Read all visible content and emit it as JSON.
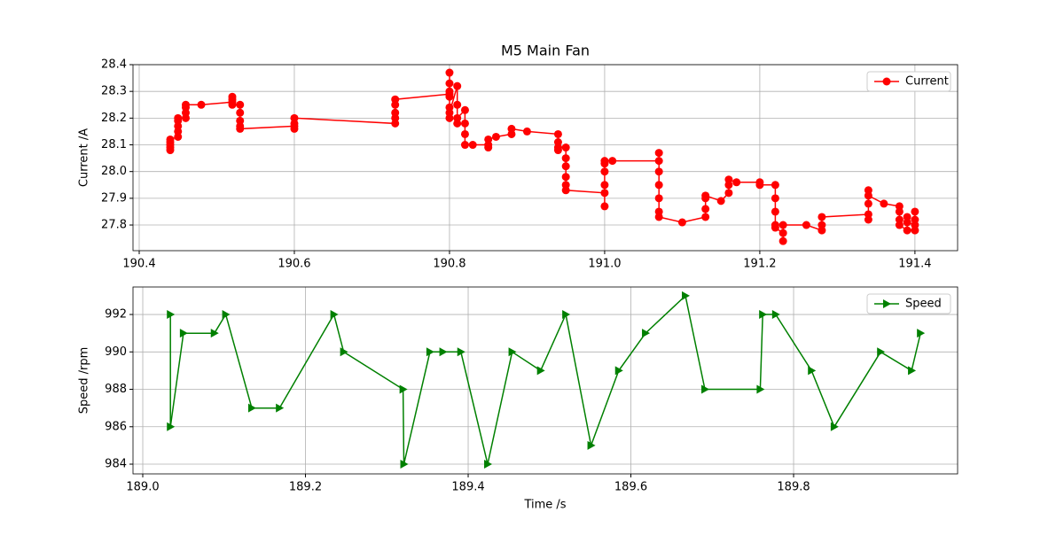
{
  "chart_data": [
    {
      "type": "line",
      "title": "M5 Main Fan",
      "y_label": "Current /A",
      "xlim": [
        190.392,
        191.455
      ],
      "ylim": [
        27.704,
        28.4
      ],
      "xticks": [
        190.4,
        190.6,
        190.8,
        {
          "value": 191.0,
          "label": "191.0"
        },
        191.2,
        191.4
      ],
      "yticks": [
        27.8,
        27.9,
        {
          "value": 28.0,
          "label": "28.0"
        },
        28.1,
        28.2,
        28.3,
        28.4
      ],
      "grid": true,
      "legend": "upper right",
      "series": [
        {
          "name": "Current",
          "color": "#ff0000",
          "marker": "o",
          "x": [
            190.44,
            190.44,
            190.44,
            190.44,
            190.44,
            190.45,
            190.45,
            190.45,
            190.45,
            190.45,
            190.46,
            190.46,
            190.46,
            190.46,
            190.48,
            190.52,
            190.52,
            190.52,
            190.52,
            190.53,
            190.53,
            190.53,
            190.53,
            190.53,
            190.6,
            190.6,
            190.6,
            190.6,
            190.73,
            190.73,
            190.73,
            190.73,
            190.73,
            190.8,
            190.8,
            190.8,
            190.8,
            190.8,
            190.8,
            190.8,
            190.8,
            190.81,
            190.81,
            190.81,
            190.81,
            190.82,
            190.82,
            190.82,
            190.82,
            190.83,
            190.85,
            190.85,
            190.85,
            190.86,
            190.88,
            190.88,
            190.9,
            190.94,
            190.94,
            190.94,
            190.94,
            190.95,
            190.95,
            190.95,
            190.95,
            190.95,
            190.95,
            191.0,
            191.0,
            191.0,
            191.0,
            191.0,
            191.0,
            191.01,
            191.07,
            191.07,
            191.07,
            191.07,
            191.07,
            191.07,
            191.07,
            191.1,
            191.13,
            191.13,
            191.13,
            191.13,
            191.15,
            191.16,
            191.16,
            191.16,
            191.17,
            191.2,
            191.2,
            191.22,
            191.22,
            191.22,
            191.22,
            191.22,
            191.23,
            191.23,
            191.23,
            191.26,
            191.28,
            191.28,
            191.28,
            191.34,
            191.34,
            191.34,
            191.34,
            191.34,
            191.36,
            191.38,
            191.38,
            191.38,
            191.38,
            191.39,
            191.39,
            191.39,
            191.4,
            191.4,
            191.4,
            191.4
          ],
          "values": [
            28.08,
            28.09,
            28.1,
            28.11,
            28.12,
            28.13,
            28.15,
            28.17,
            28.19,
            28.2,
            28.2,
            28.22,
            28.24,
            28.25,
            28.25,
            28.26,
            28.27,
            28.28,
            28.25,
            28.25,
            28.22,
            28.19,
            28.17,
            28.16,
            28.17,
            28.16,
            28.18,
            28.2,
            28.18,
            28.2,
            28.22,
            28.25,
            28.27,
            28.29,
            28.37,
            28.33,
            28.2,
            28.3,
            28.24,
            28.28,
            28.22,
            28.32,
            28.25,
            28.18,
            28.2,
            28.23,
            28.18,
            28.14,
            28.1,
            28.1,
            28.1,
            28.09,
            28.12,
            28.13,
            28.14,
            28.16,
            28.15,
            28.14,
            28.11,
            28.08,
            28.09,
            28.09,
            28.05,
            28.02,
            27.98,
            27.95,
            27.93,
            27.92,
            27.87,
            27.95,
            28.0,
            28.03,
            28.04,
            28.04,
            28.04,
            28.07,
            28.0,
            27.95,
            27.9,
            27.85,
            27.83,
            27.81,
            27.83,
            27.86,
            27.9,
            27.91,
            27.89,
            27.92,
            27.95,
            27.97,
            27.96,
            27.96,
            27.95,
            27.95,
            27.9,
            27.85,
            27.8,
            27.79,
            27.77,
            27.74,
            27.8,
            27.8,
            27.78,
            27.8,
            27.83,
            27.84,
            27.82,
            27.88,
            27.93,
            27.91,
            27.88,
            27.87,
            27.85,
            27.82,
            27.8,
            27.78,
            27.83,
            27.81,
            27.8,
            27.82,
            27.85,
            27.78
          ]
        }
      ]
    },
    {
      "type": "line",
      "x_label": "Time /s",
      "y_label": "Speed /rpm",
      "xlim": [
        188.988,
        190.0016
      ],
      "ylim": [
        983.48,
        993.47
      ],
      "xticks": [
        {
          "value": 189.0,
          "label": "189.0"
        },
        189.2,
        189.4,
        189.6,
        189.8
      ],
      "yticks": [
        984,
        986,
        988,
        990,
        992
      ],
      "grid": true,
      "legend": "upper right",
      "series": [
        {
          "name": "Speed",
          "color": "#008000",
          "marker": ">",
          "x": [
            189.034,
            189.034,
            189.05,
            189.088,
            189.102,
            189.134,
            189.168,
            189.235,
            189.247,
            189.32,
            189.321,
            189.353,
            189.369,
            189.391,
            189.424,
            189.454,
            189.489,
            189.52,
            189.551,
            189.585,
            189.618,
            189.667,
            189.691,
            189.759,
            189.762,
            189.778,
            189.822,
            189.85,
            189.907,
            189.945,
            189.956
          ],
          "values": [
            992,
            986,
            991,
            991,
            992,
            987,
            987,
            992,
            990,
            988,
            984,
            990,
            990,
            990,
            984,
            990,
            989,
            992,
            985,
            989,
            991,
            993,
            988,
            988,
            992,
            992,
            989,
            986,
            990,
            989,
            991
          ]
        }
      ]
    }
  ]
}
